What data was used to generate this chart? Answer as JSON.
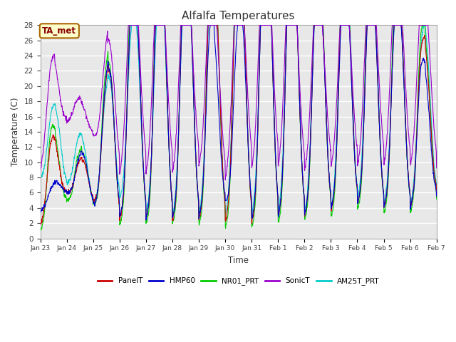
{
  "title": "Alfalfa Temperatures",
  "xlabel": "Time",
  "ylabel": "Temperature (C)",
  "ylim": [
    0,
    28
  ],
  "background_color": "#ffffff",
  "plot_bg_color": "#e8e8e8",
  "grid_color": "#ffffff",
  "annotation_text": "TA_met",
  "annotation_color": "#880000",
  "annotation_bg": "#ffffcc",
  "annotation_border": "#aa6600",
  "series": [
    {
      "name": "PanelT",
      "color": "#cc0000",
      "lw": 0.8,
      "zorder": 4
    },
    {
      "name": "HMP60",
      "color": "#0000cc",
      "lw": 0.8,
      "zorder": 5
    },
    {
      "name": "NR01_PRT",
      "color": "#00cc00",
      "lw": 0.8,
      "zorder": 3
    },
    {
      "name": "SonicT",
      "color": "#9900cc",
      "lw": 0.8,
      "zorder": 6
    },
    {
      "name": "AM25T_PRT",
      "color": "#00cccc",
      "lw": 0.8,
      "zorder": 2
    }
  ],
  "tick_labels": [
    "Jan 23",
    "Jan 24",
    "Jan 25",
    "Jan 26",
    "Jan 27",
    "Jan 28",
    "Jan 29",
    "Jan 30",
    "Jan 31",
    "Feb 1",
    "Feb 2",
    "Feb 3",
    "Feb 4",
    "Feb 5",
    "Feb 6",
    "Feb 7"
  ],
  "yticks": [
    0,
    2,
    4,
    6,
    8,
    10,
    12,
    14,
    16,
    18,
    20,
    22,
    24,
    26,
    28
  ]
}
